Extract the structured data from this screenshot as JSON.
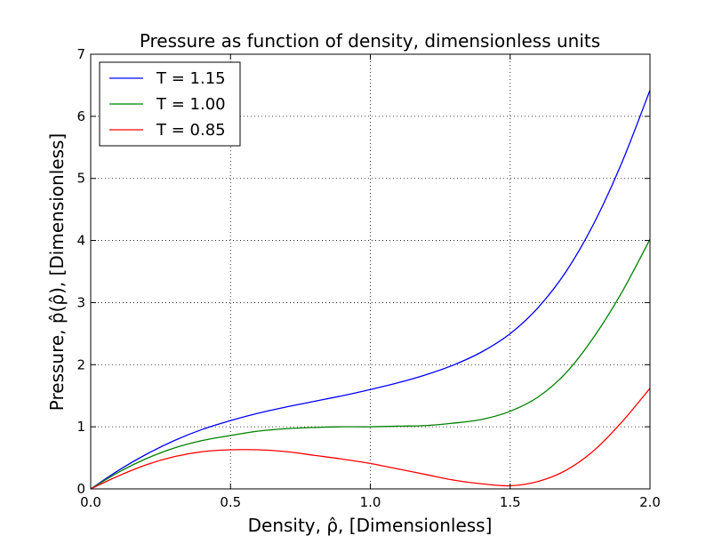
{
  "chart_data": {
    "type": "line",
    "title": "Pressure as function of density, dimensionless units",
    "xlabel": "Density, ρ̂, [Dimensionless]",
    "ylabel": "Pressure, p̂(ρ̂), [Dimensionless]",
    "xlim": [
      0.0,
      2.0
    ],
    "ylim": [
      0,
      7
    ],
    "x_ticks": [
      "0.0",
      "0.5",
      "1.0",
      "1.5",
      "2.0"
    ],
    "y_ticks": [
      "0",
      "1",
      "2",
      "3",
      "4",
      "5",
      "6",
      "7"
    ],
    "grid": true,
    "legend_position": "top-left",
    "x": [
      0.0,
      0.1,
      0.2,
      0.3,
      0.4,
      0.5,
      0.6,
      0.7,
      0.8,
      0.9,
      1.0,
      1.1,
      1.2,
      1.3,
      1.4,
      1.5,
      1.6,
      1.7,
      1.8,
      1.9,
      2.0
    ],
    "series": [
      {
        "name": "T = 1.15",
        "color": "#0000ff",
        "values": [
          0.0,
          0.3,
          0.56,
          0.78,
          0.96,
          1.1,
          1.22,
          1.32,
          1.41,
          1.5,
          1.6,
          1.71,
          1.84,
          2.0,
          2.21,
          2.5,
          2.92,
          3.5,
          4.28,
          5.26,
          6.42
        ]
      },
      {
        "name": "T = 1.00",
        "color": "#008000",
        "values": [
          0.0,
          0.27,
          0.49,
          0.66,
          0.78,
          0.86,
          0.93,
          0.97,
          0.99,
          1.0,
          1.0,
          1.01,
          1.02,
          1.06,
          1.12,
          1.25,
          1.48,
          1.87,
          2.45,
          3.17,
          4.02
        ]
      },
      {
        "name": "T = 0.85",
        "color": "#ff0000",
        "values": [
          0.0,
          0.21,
          0.39,
          0.52,
          0.6,
          0.63,
          0.63,
          0.6,
          0.54,
          0.48,
          0.41,
          0.32,
          0.23,
          0.14,
          0.08,
          0.05,
          0.12,
          0.3,
          0.62,
          1.08,
          1.62
        ]
      }
    ]
  }
}
